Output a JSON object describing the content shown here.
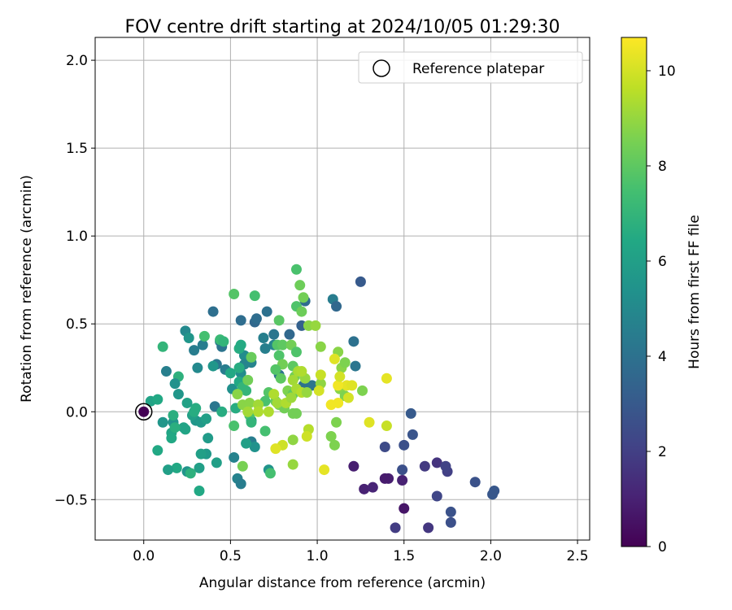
{
  "chart_data": {
    "type": "scatter",
    "title": "FOV centre drift starting at 2024/10/05 01:29:30",
    "xlabel": "Angular distance from reference (arcmin)",
    "ylabel": "Rotation from reference (arcmin)",
    "xlim": [
      -0.28,
      2.57
    ],
    "ylim": [
      -0.73,
      2.13
    ],
    "xticks": [
      0.0,
      0.5,
      1.0,
      1.5,
      2.0,
      2.5
    ],
    "xtick_labels": [
      "0.0",
      "0.5",
      "1.0",
      "1.5",
      "2.0",
      "2.5"
    ],
    "yticks": [
      -0.5,
      0.0,
      0.5,
      1.0,
      1.5,
      2.0
    ],
    "ytick_labels": [
      "−0.5",
      "0.0",
      "0.5",
      "1.0",
      "1.5",
      "2.0"
    ],
    "grid": true,
    "colormap": "viridis",
    "colorbar": {
      "label": "Hours from first FF file",
      "range": [
        0,
        10.7
      ],
      "ticks": [
        0,
        2,
        4,
        6,
        8,
        10
      ],
      "tick_labels": [
        "0",
        "2",
        "4",
        "6",
        "8",
        "10"
      ]
    },
    "legend": {
      "position": "top-right",
      "entries": [
        "Reference platepar"
      ]
    },
    "reference_point": {
      "x": 0.0,
      "y": 0.0
    },
    "points": [
      [
        1.49,
        -0.39,
        1.0
      ],
      [
        1.41,
        -0.38,
        0.9
      ],
      [
        1.5,
        -0.55,
        0.6
      ],
      [
        1.27,
        -0.44,
        1.0
      ],
      [
        1.32,
        -0.43,
        1.1
      ],
      [
        1.21,
        -0.31,
        0.9
      ],
      [
        1.39,
        -0.38,
        0.8
      ],
      [
        1.64,
        -0.66,
        1.7
      ],
      [
        1.45,
        -0.66,
        1.9
      ],
      [
        1.62,
        -0.31,
        1.8
      ],
      [
        1.55,
        -0.13,
        2.8
      ],
      [
        1.54,
        -0.01,
        3.0
      ],
      [
        1.5,
        -0.19,
        2.6
      ],
      [
        1.49,
        -0.33,
        2.6
      ],
      [
        1.39,
        -0.2,
        2.4
      ],
      [
        1.69,
        -0.48,
        2.2
      ],
      [
        1.69,
        -0.29,
        1.6
      ],
      [
        1.75,
        -0.34,
        2.0
      ],
      [
        1.74,
        -0.31,
        2.1
      ],
      [
        1.77,
        -0.57,
        2.7
      ],
      [
        1.77,
        -0.63,
        2.6
      ],
      [
        1.91,
        -0.4,
        2.7
      ],
      [
        2.02,
        -0.45,
        2.9
      ],
      [
        2.01,
        -0.47,
        2.9
      ],
      [
        1.25,
        0.74,
        3.0
      ],
      [
        1.09,
        0.64,
        4.5
      ],
      [
        1.11,
        0.6,
        3.6
      ],
      [
        1.21,
        0.4,
        4.0
      ],
      [
        1.22,
        0.26,
        4.2
      ],
      [
        0.93,
        0.63,
        3.8
      ],
      [
        0.91,
        0.49,
        3.3
      ],
      [
        0.84,
        0.44,
        3.6
      ],
      [
        0.71,
        0.57,
        4.0
      ],
      [
        0.64,
        0.51,
        3.6
      ],
      [
        0.65,
        0.53,
        3.8
      ],
      [
        0.56,
        0.52,
        3.8
      ],
      [
        0.4,
        0.57,
        3.9
      ],
      [
        0.69,
        0.42,
        4.6
      ],
      [
        0.75,
        0.44,
        4.2
      ],
      [
        0.75,
        0.38,
        4.8
      ],
      [
        0.7,
        0.36,
        4.6
      ],
      [
        0.58,
        0.32,
        5.2
      ],
      [
        0.45,
        0.37,
        4.1
      ],
      [
        0.44,
        0.4,
        4.3
      ],
      [
        0.34,
        0.38,
        4.5
      ],
      [
        0.42,
        0.27,
        4.2
      ],
      [
        0.47,
        0.24,
        4.5
      ],
      [
        0.29,
        0.35,
        4.5
      ],
      [
        0.24,
        0.46,
        5.0
      ],
      [
        0.26,
        0.42,
        5.6
      ],
      [
        0.62,
        0.28,
        4.8
      ],
      [
        0.58,
        0.27,
        4.8
      ],
      [
        0.56,
        0.22,
        5.2
      ],
      [
        0.4,
        0.26,
        5.6
      ],
      [
        0.31,
        0.25,
        5.0
      ],
      [
        0.13,
        0.23,
        4.6
      ],
      [
        0.2,
        0.2,
        6.8
      ],
      [
        0.18,
        0.16,
        5.4
      ],
      [
        0.2,
        0.1,
        5.6
      ],
      [
        0.51,
        0.13,
        5.3
      ],
      [
        0.41,
        0.03,
        4.2
      ],
      [
        0.78,
        0.21,
        4.1
      ],
      [
        0.92,
        0.15,
        4.0
      ],
      [
        0.97,
        0.15,
        4.1
      ],
      [
        0.84,
        0.11,
        5.5
      ],
      [
        0.62,
        -0.17,
        4.5
      ],
      [
        0.54,
        -0.38,
        4.7
      ],
      [
        0.56,
        -0.41,
        4.5
      ],
      [
        0.52,
        -0.26,
        4.7
      ],
      [
        0.62,
        -0.05,
        5.3
      ],
      [
        0.64,
        -0.2,
        5.4
      ],
      [
        0.72,
        -0.33,
        5.5
      ],
      [
        0.59,
        -0.18,
        6.0
      ],
      [
        0.37,
        -0.15,
        5.8
      ],
      [
        0.36,
        -0.24,
        5.7
      ],
      [
        0.33,
        -0.24,
        6.0
      ],
      [
        0.32,
        -0.32,
        6.0
      ],
      [
        0.25,
        -0.34,
        5.5
      ],
      [
        0.19,
        -0.32,
        6.4
      ],
      [
        0.14,
        -0.33,
        6.0
      ],
      [
        0.08,
        -0.22,
        6.4
      ],
      [
        0.11,
        -0.06,
        5.6
      ],
      [
        0.17,
        -0.06,
        5.5
      ],
      [
        0.16,
        -0.12,
        6.3
      ],
      [
        0.16,
        -0.15,
        6.4
      ],
      [
        0.24,
        -0.1,
        6.3
      ],
      [
        0.23,
        -0.09,
        6.2
      ],
      [
        0.3,
        -0.05,
        5.6
      ],
      [
        0.28,
        -0.02,
        6.0
      ],
      [
        0.33,
        -0.06,
        5.7
      ],
      [
        0.36,
        -0.04,
        6.0
      ],
      [
        0.3,
        0.02,
        6.6
      ],
      [
        0.25,
        0.05,
        6.1
      ],
      [
        0.29,
        0.0,
        6.6
      ],
      [
        0.45,
        0.0,
        6.6
      ],
      [
        0.42,
        -0.29,
        6.0
      ],
      [
        0.32,
        -0.45,
        6.4
      ],
      [
        0.27,
        -0.35,
        6.8
      ],
      [
        0.04,
        0.06,
        6.2
      ],
      [
        0.08,
        0.07,
        6.4
      ],
      [
        0.11,
        0.37,
        7.0
      ],
      [
        0.17,
        -0.02,
        6.7
      ],
      [
        0.18,
        -0.09,
        6.7
      ],
      [
        0.44,
        0.41,
        7.2
      ],
      [
        0.46,
        0.4,
        7.0
      ],
      [
        0.35,
        0.43,
        7.5
      ],
      [
        0.55,
        0.36,
        6.6
      ],
      [
        0.56,
        0.38,
        6.5
      ],
      [
        0.55,
        0.25,
        6.6
      ],
      [
        0.5,
        0.22,
        6.4
      ],
      [
        0.55,
        0.17,
        6.4
      ],
      [
        0.57,
        0.14,
        7.0
      ],
      [
        0.59,
        0.12,
        7.0
      ],
      [
        0.53,
        0.02,
        6.6
      ],
      [
        0.52,
        -0.08,
        7.6
      ],
      [
        0.61,
        -0.02,
        7.6
      ],
      [
        0.62,
        -0.06,
        7.0
      ],
      [
        0.7,
        -0.11,
        7.5
      ],
      [
        0.73,
        -0.35,
        7.5
      ],
      [
        0.57,
        -0.31,
        8.5
      ],
      [
        0.64,
        0.66,
        7.5
      ],
      [
        0.52,
        0.67,
        7.8
      ],
      [
        0.88,
        0.81,
        7.6
      ],
      [
        0.88,
        0.6,
        7.7
      ],
      [
        0.9,
        0.72,
        8.3
      ],
      [
        0.91,
        0.57,
        8.3
      ],
      [
        0.92,
        0.65,
        8.4
      ],
      [
        0.78,
        0.52,
        7.9
      ],
      [
        0.77,
        0.38,
        7.8
      ],
      [
        0.8,
        0.38,
        8.0
      ],
      [
        0.85,
        0.38,
        8.4
      ],
      [
        0.88,
        0.34,
        7.7
      ],
      [
        0.78,
        0.32,
        7.7
      ],
      [
        0.8,
        0.27,
        8.4
      ],
      [
        0.86,
        0.26,
        8.0
      ],
      [
        0.76,
        0.24,
        7.8
      ],
      [
        0.79,
        0.19,
        8.0
      ],
      [
        0.87,
        0.2,
        8.4
      ],
      [
        0.72,
        0.11,
        7.8
      ],
      [
        0.83,
        0.12,
        8.6
      ],
      [
        0.86,
        0.1,
        8.0
      ],
      [
        0.7,
        0.06,
        7.6
      ],
      [
        0.76,
        0.06,
        8.2
      ],
      [
        0.78,
        0.04,
        8.6
      ],
      [
        0.81,
        0.02,
        8.4
      ],
      [
        0.86,
        -0.01,
        8.4
      ],
      [
        0.88,
        -0.01,
        8.4
      ],
      [
        0.6,
        0.18,
        8.4
      ],
      [
        0.62,
        0.31,
        8.2
      ],
      [
        0.57,
        0.04,
        8.8
      ],
      [
        0.61,
        0.05,
        8.8
      ],
      [
        0.54,
        0.1,
        8.8
      ],
      [
        0.6,
        0.0,
        9.2
      ],
      [
        0.66,
        0.04,
        9.2
      ],
      [
        0.66,
        0.0,
        9.4
      ],
      [
        0.72,
        0.0,
        9.4
      ],
      [
        0.75,
        0.1,
        9.4
      ],
      [
        0.77,
        0.05,
        9.2
      ],
      [
        0.82,
        0.05,
        9.4
      ],
      [
        0.85,
        0.08,
        9.1
      ],
      [
        0.86,
        0.18,
        9.2
      ],
      [
        0.88,
        0.13,
        9.3
      ],
      [
        0.91,
        0.11,
        9.5
      ],
      [
        0.94,
        0.11,
        9.0
      ],
      [
        0.93,
        0.19,
        9.0
      ],
      [
        0.89,
        0.23,
        9.3
      ],
      [
        0.91,
        0.23,
        9.4
      ],
      [
        0.95,
        0.49,
        8.8
      ],
      [
        0.99,
        0.49,
        9.0
      ],
      [
        1.02,
        0.37,
        8.8
      ],
      [
        1.02,
        0.16,
        8.9
      ],
      [
        1.12,
        0.34,
        8.8
      ],
      [
        1.14,
        0.25,
        8.8
      ],
      [
        1.16,
        0.28,
        8.6
      ],
      [
        1.13,
        0.13,
        8.8
      ],
      [
        1.16,
        0.09,
        8.6
      ],
      [
        1.26,
        0.12,
        8.6
      ],
      [
        1.11,
        -0.06,
        8.6
      ],
      [
        1.08,
        -0.14,
        8.6
      ],
      [
        1.1,
        -0.19,
        8.6
      ],
      [
        0.95,
        -0.1,
        9.5
      ],
      [
        0.94,
        -0.14,
        9.9
      ],
      [
        0.86,
        -0.16,
        8.9
      ],
      [
        0.86,
        -0.3,
        9.0
      ],
      [
        0.8,
        -0.19,
        9.9
      ],
      [
        0.76,
        -0.21,
        10.2
      ],
      [
        1.04,
        -0.33,
        10.3
      ],
      [
        1.3,
        -0.06,
        10.2
      ],
      [
        1.4,
        -0.08,
        9.8
      ],
      [
        1.4,
        0.19,
        10.3
      ],
      [
        1.17,
        0.15,
        10.3
      ],
      [
        1.12,
        0.15,
        10.5
      ],
      [
        1.12,
        0.05,
        10.5
      ],
      [
        1.08,
        0.04,
        10.5
      ],
      [
        1.1,
        0.3,
        10.2
      ],
      [
        1.18,
        0.08,
        10.0
      ],
      [
        1.02,
        0.21,
        9.8
      ],
      [
        1.01,
        0.12,
        10.0
      ],
      [
        1.13,
        0.2,
        10.0
      ],
      [
        1.2,
        0.15,
        10.2
      ]
    ]
  }
}
